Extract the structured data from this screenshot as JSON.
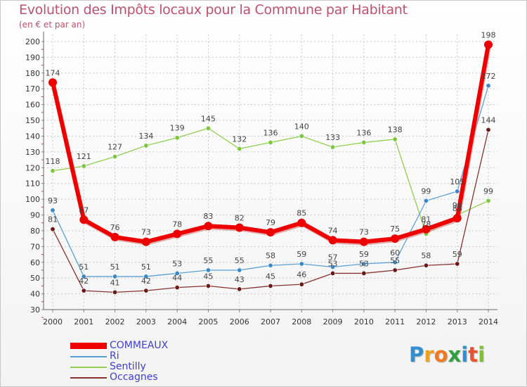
{
  "title": "Evolution des Impôts locaux pour la Commune par Habitant",
  "subtitle": "(en € et par an)",
  "logo": {
    "letters": [
      "P",
      "r",
      "o",
      "x",
      "i",
      "t",
      "i"
    ],
    "colors": [
      "#2f8fd0",
      "#f0a020",
      "#f07820",
      "#2fa040",
      "#2f8fd0",
      "#e85030",
      "#80c030"
    ]
  },
  "chart_data": {
    "type": "line",
    "x": [
      2000,
      2001,
      2002,
      2003,
      2004,
      2005,
      2006,
      2007,
      2008,
      2009,
      2010,
      2011,
      2012,
      2013,
      2014
    ],
    "ylim": [
      30,
      200
    ],
    "yticks": [
      30,
      40,
      50,
      60,
      70,
      80,
      90,
      100,
      110,
      120,
      130,
      140,
      150,
      160,
      170,
      180,
      190,
      200
    ],
    "grid": true,
    "legend_position": "bottom-left",
    "series": [
      {
        "name": "Sentilly",
        "color": "#90d050",
        "marker": "#7cc83c",
        "width": 1.3,
        "values": [
          118,
          121,
          127,
          134,
          139,
          145,
          132,
          136,
          140,
          133,
          136,
          138,
          78,
          90,
          99
        ]
      },
      {
        "name": "Ri",
        "color": "#5aa0d6",
        "marker": "#3a88c8",
        "width": 1.3,
        "values": [
          93,
          51,
          51,
          51,
          53,
          55,
          55,
          58,
          59,
          57,
          59,
          60,
          99,
          105,
          172
        ]
      },
      {
        "name": "Occagnes",
        "color": "#8a3030",
        "marker": "#6a1818",
        "width": 1.3,
        "values": [
          81,
          42,
          41,
          42,
          44,
          45,
          43,
          45,
          46,
          53,
          53,
          55,
          58,
          59,
          144
        ]
      },
      {
        "name": "COMMEAUX",
        "color": "#ee0000",
        "marker": "#ee0000",
        "width": 6,
        "values": [
          174,
          87,
          76,
          73,
          78,
          83,
          82,
          79,
          85,
          74,
          73,
          75,
          81,
          88,
          198
        ]
      }
    ],
    "data_labels": {
      "Sentilly": [
        "118",
        "121",
        "127",
        "134",
        "139",
        "145",
        "132",
        "136",
        "140",
        "133",
        "136",
        "138",
        "78",
        "90",
        "99"
      ],
      "Ri": [
        "93",
        "51",
        "51",
        "51",
        "53",
        "55",
        "55",
        "58",
        "59",
        "57",
        "59",
        "60",
        "99",
        "105",
        "172"
      ],
      "Occagnes": [
        "81",
        "42",
        "41",
        "42",
        "44",
        "45",
        "43",
        "45",
        "46",
        "53",
        "53",
        "55",
        "58",
        "59",
        "144"
      ],
      "COMMEAUX": [
        "174",
        "87",
        "76",
        "73",
        "78",
        "83",
        "82",
        "79",
        "85",
        "74",
        "73",
        "75",
        "81",
        "88",
        "198"
      ]
    },
    "legend_order": [
      "COMMEAUX",
      "Ri",
      "Sentilly",
      "Occagnes"
    ]
  }
}
